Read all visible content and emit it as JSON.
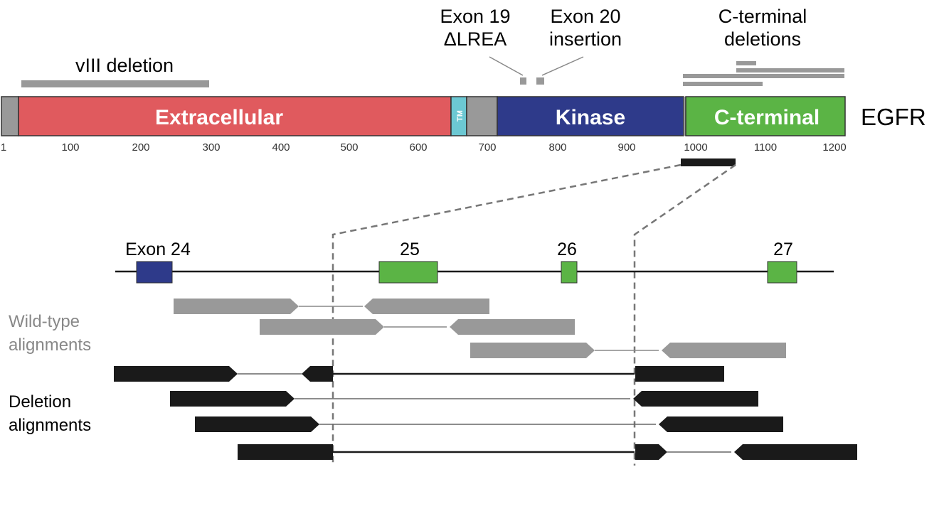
{
  "annotations": {
    "viii": "vIII deletion",
    "exon19_line1": "Exon 19",
    "exon19_line2": "ΔLREA",
    "exon20_line1": "Exon 20",
    "exon20_line2": "insertion",
    "cterm_line1": "C-terminal",
    "cterm_line2": "deletions"
  },
  "protein": {
    "name": "EGFR",
    "domains": {
      "extracellular": "Extracellular",
      "tm": "TM",
      "kinase": "Kinase",
      "cterminal": "C-terminal"
    },
    "ticks": [
      "1",
      "100",
      "200",
      "300",
      "400",
      "500",
      "600",
      "700",
      "800",
      "900",
      "1000",
      "1100",
      "1200"
    ]
  },
  "exons": {
    "e24": "Exon 24",
    "e25": "25",
    "e26": "26",
    "e27": "27"
  },
  "groups": {
    "wildtype_line1": "Wild-type",
    "wildtype_line2": "alignments",
    "deletion_line1": "Deletion",
    "deletion_line2": "alignments"
  },
  "colors": {
    "extracellular": "#e05a5e",
    "tm": "#6cc8d3",
    "kinase": "#2e3a8a",
    "cterminal": "#5bb445",
    "gray": "#999999",
    "black": "#1a1a1a"
  }
}
